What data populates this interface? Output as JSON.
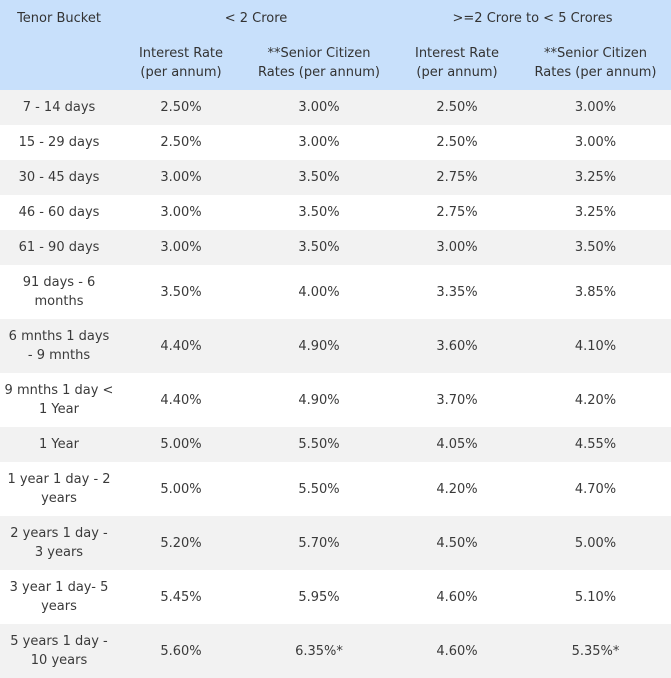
{
  "header": {
    "tenor_bucket": "Tenor Bucket",
    "group1": "< 2 Crore",
    "group2": ">=2 Crore to < 5 Crores",
    "interest_rate_1": "Interest Rate",
    "interest_rate_2": "(per annum)",
    "senior_1": "**Senior Citizen",
    "senior_2": "Rates (per annum)"
  },
  "rows": [
    {
      "tenor": [
        "7 - 14 days"
      ],
      "a": "2.50%",
      "b": "3.00%",
      "c": "2.50%",
      "d": "3.00%"
    },
    {
      "tenor": [
        "15 - 29 days"
      ],
      "a": "2.50%",
      "b": "3.00%",
      "c": "2.50%",
      "d": "3.00%"
    },
    {
      "tenor": [
        "30 - 45 days"
      ],
      "a": "3.00%",
      "b": "3.50%",
      "c": "2.75%",
      "d": "3.25%"
    },
    {
      "tenor": [
        "46 - 60 days"
      ],
      "a": "3.00%",
      "b": "3.50%",
      "c": "2.75%",
      "d": "3.25%"
    },
    {
      "tenor": [
        "61 - 90 days"
      ],
      "a": "3.00%",
      "b": "3.50%",
      "c": "3.00%",
      "d": "3.50%"
    },
    {
      "tenor": [
        "91 days - 6",
        "months"
      ],
      "a": "3.50%",
      "b": "4.00%",
      "c": "3.35%",
      "d": "3.85%"
    },
    {
      "tenor": [
        "6 mnths 1 days",
        "- 9 mnths"
      ],
      "a": "4.40%",
      "b": "4.90%",
      "c": "3.60%",
      "d": "4.10%"
    },
    {
      "tenor": [
        "9 mnths 1 day <",
        "1 Year"
      ],
      "a": "4.40%",
      "b": "4.90%",
      "c": "3.70%",
      "d": "4.20%"
    },
    {
      "tenor": [
        "1 Year"
      ],
      "a": "5.00%",
      "b": "5.50%",
      "c": "4.05%",
      "d": "4.55%"
    },
    {
      "tenor": [
        "1 year 1 day - 2",
        "years"
      ],
      "a": "5.00%",
      "b": "5.50%",
      "c": "4.20%",
      "d": "4.70%"
    },
    {
      "tenor": [
        "2 years 1 day -",
        "3 years"
      ],
      "a": "5.20%",
      "b": "5.70%",
      "c": "4.50%",
      "d": "5.00%"
    },
    {
      "tenor": [
        "3 year 1 day- 5",
        "years"
      ],
      "a": "5.45%",
      "b": "5.95%",
      "c": "4.60%",
      "d": "5.10%"
    },
    {
      "tenor": [
        "5 years 1 day -",
        "10 years"
      ],
      "a": "5.60%",
      "b": "6.35%*",
      "c": "4.60%",
      "d": "5.35%*"
    }
  ]
}
